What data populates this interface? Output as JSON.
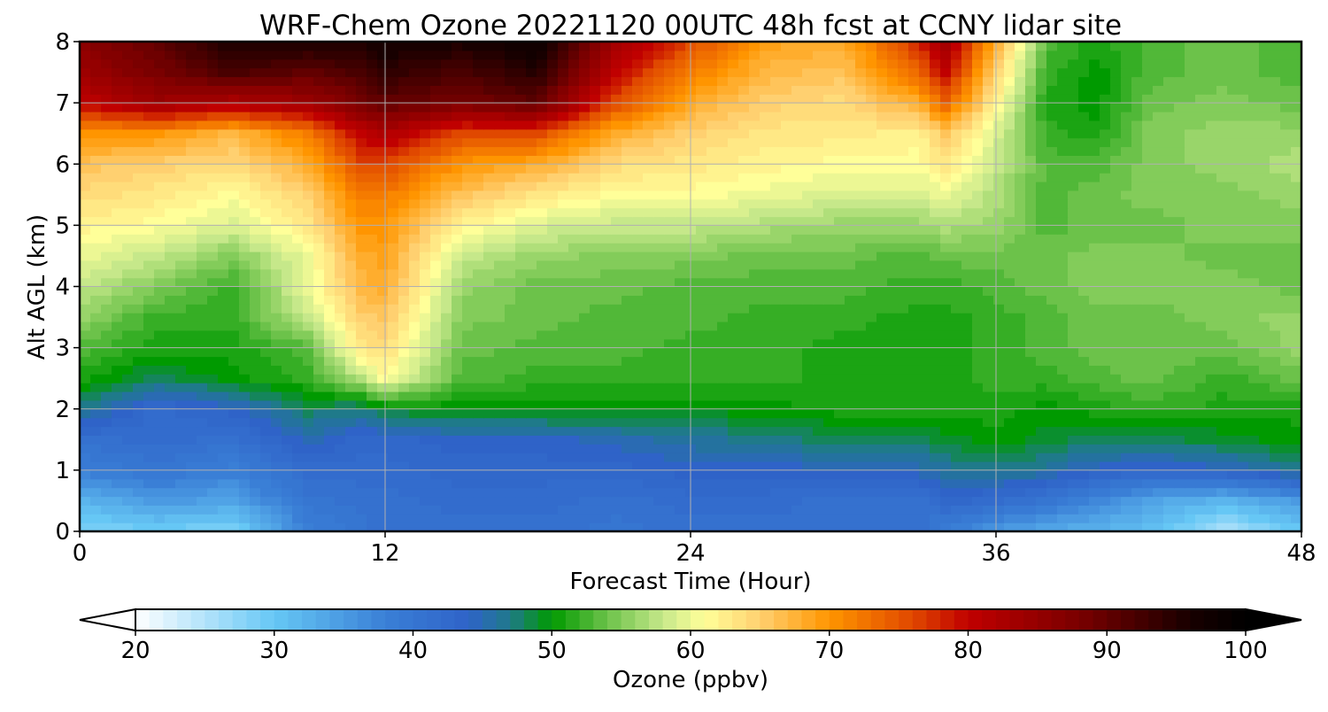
{
  "chart_data": {
    "type": "heatmap",
    "title": "WRF-Chem Ozone  20221120 00UTC 48h fcst at CCNY lidar site",
    "xlabel": "Forecast Time (Hour)",
    "ylabel": "Alt AGL (km)",
    "xlim": [
      0,
      48
    ],
    "ylim": [
      0,
      8
    ],
    "x_ticks": [
      0,
      12,
      24,
      36,
      48
    ],
    "y_ticks": [
      0,
      1,
      2,
      3,
      4,
      5,
      6,
      7,
      8
    ],
    "grid": true,
    "x": [
      0,
      3,
      6,
      9,
      11,
      12,
      15,
      18,
      21,
      24,
      27,
      30,
      33,
      34,
      36,
      38,
      40,
      42,
      45,
      48
    ],
    "y": [
      0,
      0.5,
      1,
      1.5,
      2,
      2.5,
      3,
      3.5,
      4,
      4.5,
      5,
      5.5,
      6,
      6.5,
      7,
      7.5,
      8
    ],
    "z": [
      [
        28,
        29,
        28,
        38,
        40,
        41,
        41,
        41,
        40,
        41,
        41,
        41,
        41,
        38,
        35,
        33,
        32,
        31,
        25,
        30
      ],
      [
        32,
        35,
        34,
        40,
        41,
        41,
        42,
        42,
        41,
        42,
        42,
        41,
        41,
        43,
        42,
        40,
        37,
        34,
        32,
        35
      ],
      [
        38,
        40,
        38,
        42,
        42,
        42,
        43,
        43,
        43,
        44,
        44,
        44,
        45,
        46,
        47,
        46,
        44,
        43,
        44,
        47
      ],
      [
        41,
        42,
        41,
        45,
        43,
        43,
        44,
        44,
        45,
        46,
        47,
        48,
        48,
        49,
        50,
        49,
        48,
        48,
        49,
        50
      ],
      [
        47,
        42,
        44,
        48,
        47,
        49,
        50,
        50,
        50,
        50,
        50,
        51,
        51,
        51,
        51,
        50,
        51,
        52,
        51,
        51
      ],
      [
        51,
        48,
        50,
        52,
        57,
        61,
        53,
        52,
        52,
        52,
        52,
        51,
        51,
        51,
        52,
        52,
        53,
        54,
        52,
        54
      ],
      [
        53,
        51,
        51,
        53,
        63,
        64,
        54,
        53,
        53,
        52,
        52,
        51,
        51,
        51,
        52,
        53,
        54,
        54,
        54,
        56
      ],
      [
        56,
        52,
        52,
        58,
        65,
        66,
        55,
        54,
        53,
        53,
        52,
        52,
        51,
        51,
        52,
        53,
        54,
        54,
        55,
        56
      ],
      [
        58,
        55,
        52,
        60,
        67,
        68,
        56,
        54,
        54,
        53,
        53,
        53,
        52,
        52,
        53,
        54,
        55,
        55,
        55,
        54
      ],
      [
        60,
        58,
        55,
        60,
        68,
        69,
        58,
        56,
        55,
        55,
        54,
        54,
        53,
        54,
        54,
        54,
        55,
        55,
        54,
        54
      ],
      [
        62,
        61,
        59,
        63,
        70,
        70,
        62,
        59,
        58,
        58,
        57,
        56,
        56,
        57,
        56,
        53,
        54,
        54,
        55,
        55
      ],
      [
        64,
        63,
        61,
        65,
        72,
        72,
        66,
        63,
        61,
        61,
        60,
        59,
        59,
        60,
        57,
        53,
        54,
        55,
        55,
        56
      ],
      [
        66,
        65,
        64,
        68,
        76,
        76,
        70,
        68,
        64,
        63,
        62,
        61,
        61,
        63,
        58,
        53,
        53,
        55,
        56,
        57
      ],
      [
        70,
        70,
        67,
        72,
        80,
        82,
        76,
        76,
        68,
        65,
        63,
        63,
        62,
        66,
        59,
        52,
        51,
        55,
        56,
        56
      ],
      [
        80,
        84,
        82,
        84,
        88,
        90,
        88,
        90,
        76,
        68,
        65,
        64,
        68,
        74,
        62,
        51,
        50,
        54,
        55,
        54
      ],
      [
        84,
        88,
        92,
        90,
        92,
        94,
        92,
        95,
        80,
        72,
        67,
        66,
        74,
        80,
        65,
        52,
        50,
        53,
        54,
        53
      ],
      [
        86,
        90,
        96,
        96,
        96,
        97,
        96,
        98,
        84,
        76,
        69,
        68,
        78,
        84,
        68,
        53,
        51,
        53,
        54,
        53
      ]
    ],
    "colorbar": {
      "label": "Ozone  (ppbv)",
      "ticks": [
        20,
        30,
        40,
        50,
        60,
        70,
        80,
        90,
        100
      ],
      "range": [
        20,
        100
      ],
      "extend": "both",
      "stops": [
        {
          "v": 20,
          "c": "#ffffff"
        },
        {
          "v": 30,
          "c": "#66c7f5"
        },
        {
          "v": 38,
          "c": "#3a7fd6"
        },
        {
          "v": 44,
          "c": "#2f63c8"
        },
        {
          "v": 47,
          "c": "#1f7a8a"
        },
        {
          "v": 50,
          "c": "#009a00"
        },
        {
          "v": 54,
          "c": "#6cc24a"
        },
        {
          "v": 58,
          "c": "#c6e88a"
        },
        {
          "v": 61,
          "c": "#ffff99"
        },
        {
          "v": 65,
          "c": "#ffd070"
        },
        {
          "v": 70,
          "c": "#ff9500"
        },
        {
          "v": 76,
          "c": "#e04800"
        },
        {
          "v": 80,
          "c": "#c00000"
        },
        {
          "v": 88,
          "c": "#7a0000"
        },
        {
          "v": 96,
          "c": "#180000"
        },
        {
          "v": 100,
          "c": "#000000"
        }
      ]
    }
  }
}
